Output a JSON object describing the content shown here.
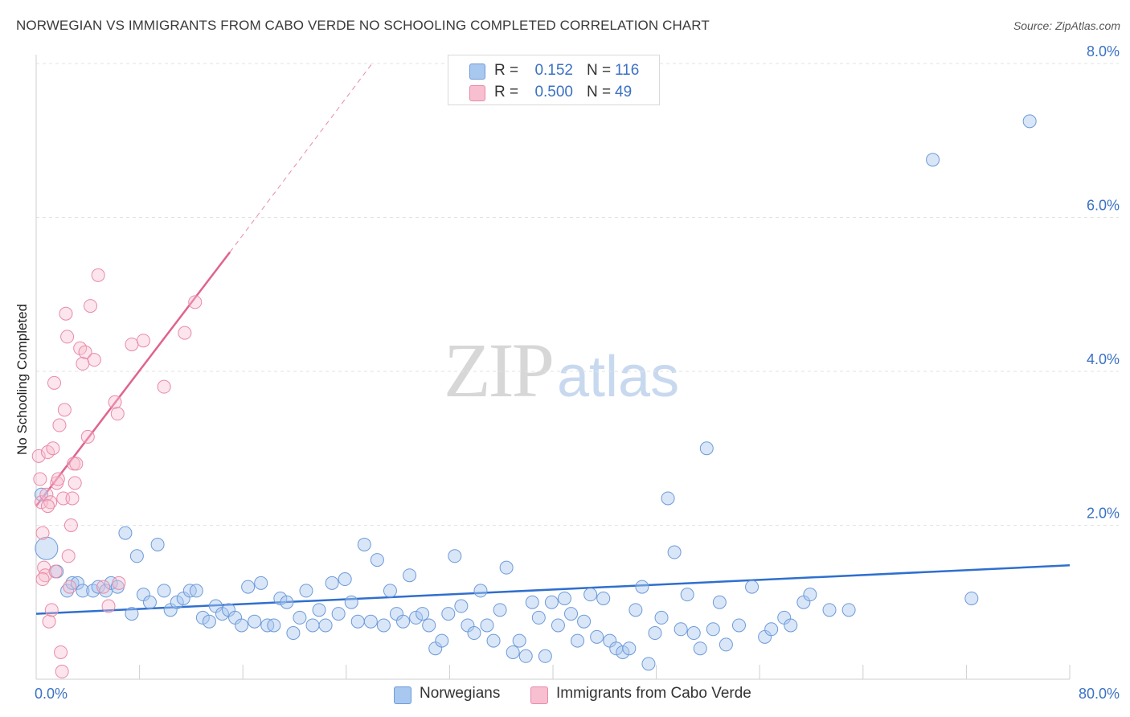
{
  "title": "NORWEGIAN VS IMMIGRANTS FROM CABO VERDE NO SCHOOLING COMPLETED CORRELATION CHART",
  "source": "Source: ZipAtlas.com",
  "watermark": {
    "part1": "ZIP",
    "part2": "atlas"
  },
  "legend_top": [
    {
      "r_label": "R =",
      "r_value": "0.152",
      "n_label": "N =",
      "n_value": "116",
      "color": "#a9c8f0",
      "border": "#6e9ad8"
    },
    {
      "r_label": "R =",
      "r_value": "0.500",
      "n_label": "N =",
      "n_value": "49",
      "color": "#f8bfd0",
      "border": "#e98aa8"
    }
  ],
  "legend_bottom": [
    {
      "label": "Norwegians",
      "color": "#a9c8f0",
      "border": "#6e9ad8"
    },
    {
      "label": "Immigrants from Cabo Verde",
      "color": "#f8bfd0",
      "border": "#e98aa8"
    }
  ],
  "colors": {
    "blue_fill": "#a9c8f0",
    "blue_stroke": "#6e9ad8",
    "blue_line": "#2f6fce",
    "pink_fill": "#f8bfd0",
    "pink_stroke": "#e98aa8",
    "pink_line": "#e0638f",
    "axis_text": "#3b72c4",
    "grid": "#e3e3e3"
  },
  "chart_data": {
    "type": "scatter",
    "title": "NORWEGIAN VS IMMIGRANTS FROM CABO VERDE NO SCHOOLING COMPLETED CORRELATION CHART",
    "xlabel": "",
    "ylabel": "No Schooling Completed",
    "xlim": [
      0,
      80
    ],
    "ylim": [
      0,
      8.5
    ],
    "x_tick_labels": [
      "0.0%",
      "80.0%"
    ],
    "y_tick_labels": [
      "2.0%",
      "4.0%",
      "6.0%",
      "8.0%"
    ],
    "y_ticks": [
      2,
      4,
      6,
      8
    ],
    "grid": "horizontal dashed",
    "legend": "bottom",
    "series": [
      {
        "name": "Norwegians",
        "r": 0.152,
        "n": 116,
        "trend": {
          "x": [
            0,
            80
          ],
          "y": [
            0.85,
            1.48
          ]
        },
        "points": [
          [
            0.4,
            2.4
          ],
          [
            0.8,
            1.7
          ],
          [
            1.6,
            1.4
          ],
          [
            2.4,
            1.15
          ],
          [
            2.8,
            1.25
          ],
          [
            3.2,
            1.25
          ],
          [
            3.6,
            1.15
          ],
          [
            4.4,
            1.15
          ],
          [
            4.8,
            1.2
          ],
          [
            5.4,
            1.15
          ],
          [
            5.8,
            1.25
          ],
          [
            6.3,
            1.2
          ],
          [
            6.9,
            1.9
          ],
          [
            7.4,
            0.85
          ],
          [
            7.8,
            1.6
          ],
          [
            8.3,
            1.1
          ],
          [
            8.8,
            1.0
          ],
          [
            9.4,
            1.75
          ],
          [
            9.9,
            1.15
          ],
          [
            10.4,
            0.9
          ],
          [
            10.9,
            1.0
          ],
          [
            11.4,
            1.05
          ],
          [
            11.9,
            1.15
          ],
          [
            12.4,
            1.15
          ],
          [
            12.9,
            0.8
          ],
          [
            13.4,
            0.75
          ],
          [
            13.9,
            0.95
          ],
          [
            14.4,
            0.85
          ],
          [
            14.9,
            0.9
          ],
          [
            15.4,
            0.8
          ],
          [
            15.9,
            0.7
          ],
          [
            16.4,
            1.2
          ],
          [
            16.9,
            0.75
          ],
          [
            17.4,
            1.25
          ],
          [
            17.9,
            0.7
          ],
          [
            18.4,
            0.7
          ],
          [
            18.9,
            1.05
          ],
          [
            19.4,
            1.0
          ],
          [
            19.9,
            0.6
          ],
          [
            20.4,
            0.8
          ],
          [
            20.9,
            1.15
          ],
          [
            21.4,
            0.7
          ],
          [
            21.9,
            0.9
          ],
          [
            22.4,
            0.7
          ],
          [
            22.9,
            1.25
          ],
          [
            23.4,
            0.85
          ],
          [
            23.9,
            1.3
          ],
          [
            24.4,
            1.0
          ],
          [
            24.9,
            0.75
          ],
          [
            25.4,
            1.75
          ],
          [
            25.9,
            0.75
          ],
          [
            26.4,
            1.55
          ],
          [
            26.9,
            0.7
          ],
          [
            27.4,
            1.15
          ],
          [
            27.9,
            0.85
          ],
          [
            28.4,
            0.75
          ],
          [
            28.9,
            1.35
          ],
          [
            29.4,
            0.8
          ],
          [
            29.9,
            0.85
          ],
          [
            30.4,
            0.7
          ],
          [
            30.9,
            0.4
          ],
          [
            31.4,
            0.5
          ],
          [
            31.9,
            0.85
          ],
          [
            32.4,
            1.6
          ],
          [
            32.9,
            0.95
          ],
          [
            33.4,
            0.7
          ],
          [
            33.9,
            0.6
          ],
          [
            34.4,
            1.15
          ],
          [
            34.9,
            0.7
          ],
          [
            35.4,
            0.5
          ],
          [
            35.9,
            0.9
          ],
          [
            36.4,
            1.45
          ],
          [
            36.9,
            0.35
          ],
          [
            37.4,
            0.5
          ],
          [
            37.9,
            0.3
          ],
          [
            38.4,
            1.0
          ],
          [
            38.9,
            0.8
          ],
          [
            39.4,
            0.3
          ],
          [
            39.9,
            1.0
          ],
          [
            40.4,
            0.7
          ],
          [
            40.9,
            1.05
          ],
          [
            41.4,
            0.85
          ],
          [
            41.9,
            0.5
          ],
          [
            42.4,
            0.75
          ],
          [
            42.9,
            1.1
          ],
          [
            43.4,
            0.55
          ],
          [
            43.9,
            1.05
          ],
          [
            44.4,
            0.5
          ],
          [
            44.9,
            0.4
          ],
          [
            45.4,
            0.35
          ],
          [
            45.9,
            0.4
          ],
          [
            46.4,
            0.9
          ],
          [
            46.9,
            1.2
          ],
          [
            47.4,
            0.2
          ],
          [
            47.9,
            0.6
          ],
          [
            48.4,
            0.8
          ],
          [
            48.9,
            2.35
          ],
          [
            49.4,
            1.65
          ],
          [
            49.9,
            0.65
          ],
          [
            50.4,
            1.1
          ],
          [
            50.9,
            0.6
          ],
          [
            51.4,
            0.4
          ],
          [
            51.9,
            3.0
          ],
          [
            52.4,
            0.65
          ],
          [
            52.9,
            1.0
          ],
          [
            53.4,
            0.45
          ],
          [
            54.4,
            0.7
          ],
          [
            55.4,
            1.2
          ],
          [
            56.4,
            0.55
          ],
          [
            56.9,
            0.65
          ],
          [
            57.9,
            0.8
          ],
          [
            58.4,
            0.7
          ],
          [
            59.4,
            1.0
          ],
          [
            59.9,
            1.1
          ],
          [
            61.4,
            0.9
          ],
          [
            62.9,
            0.9
          ],
          [
            72.4,
            1.05
          ],
          [
            69.4,
            6.75
          ],
          [
            76.9,
            7.25
          ]
        ]
      },
      {
        "name": "Immigrants from Cabo Verde",
        "r": 0.5,
        "n": 49,
        "trend": {
          "x": [
            0,
            15
          ],
          "y": [
            2.25,
            5.55
          ]
        },
        "trend_dashed": {
          "x": [
            15,
            26
          ],
          "y": [
            5.55,
            8.0
          ]
        },
        "points": [
          [
            0.2,
            2.9
          ],
          [
            0.3,
            2.6
          ],
          [
            0.4,
            2.3
          ],
          [
            0.5,
            1.9
          ],
          [
            0.6,
            1.45
          ],
          [
            0.7,
            1.35
          ],
          [
            0.8,
            2.4
          ],
          [
            0.9,
            2.95
          ],
          [
            1.0,
            0.75
          ],
          [
            1.1,
            2.3
          ],
          [
            1.2,
            0.9
          ],
          [
            1.3,
            3.0
          ],
          [
            1.4,
            3.85
          ],
          [
            1.5,
            1.4
          ],
          [
            1.6,
            2.55
          ],
          [
            1.7,
            2.6
          ],
          [
            1.8,
            3.3
          ],
          [
            1.9,
            0.35
          ],
          [
            2.0,
            0.1
          ],
          [
            2.1,
            2.35
          ],
          [
            2.2,
            3.5
          ],
          [
            2.3,
            4.75
          ],
          [
            2.4,
            4.45
          ],
          [
            2.5,
            1.6
          ],
          [
            2.6,
            1.2
          ],
          [
            2.7,
            2.0
          ],
          [
            2.8,
            2.35
          ],
          [
            2.9,
            2.8
          ],
          [
            3.0,
            2.55
          ],
          [
            3.1,
            2.8
          ],
          [
            3.4,
            4.3
          ],
          [
            3.6,
            4.1
          ],
          [
            3.8,
            4.25
          ],
          [
            4.0,
            3.15
          ],
          [
            4.2,
            4.85
          ],
          [
            4.5,
            4.15
          ],
          [
            4.8,
            5.25
          ],
          [
            5.2,
            1.2
          ],
          [
            5.6,
            0.95
          ],
          [
            6.1,
            3.6
          ],
          [
            6.3,
            3.45
          ],
          [
            6.4,
            1.25
          ],
          [
            7.4,
            4.35
          ],
          [
            8.3,
            4.4
          ],
          [
            9.9,
            3.8
          ],
          [
            11.5,
            4.5
          ],
          [
            12.3,
            4.9
          ],
          [
            0.5,
            1.3
          ],
          [
            0.9,
            2.25
          ]
        ]
      }
    ]
  }
}
